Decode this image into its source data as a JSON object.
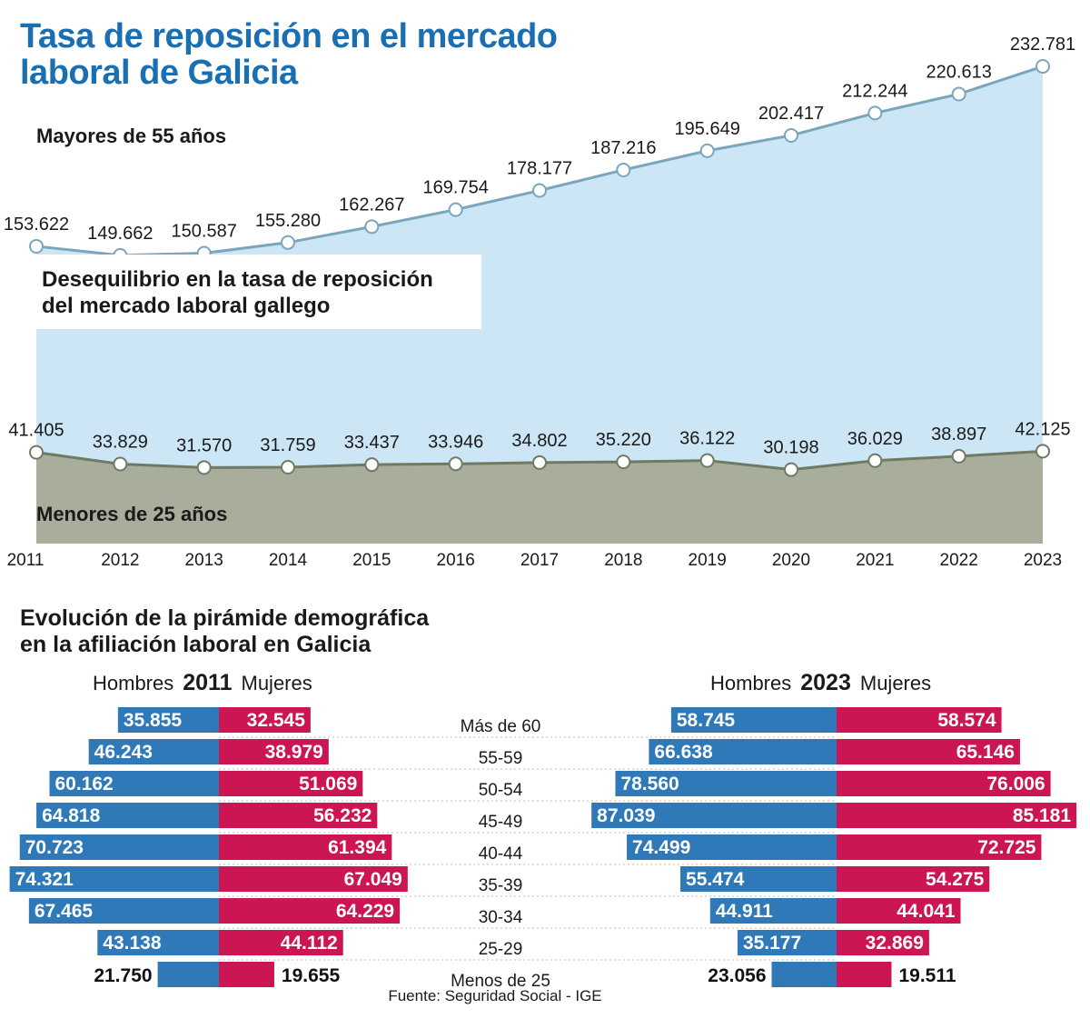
{
  "title_line1": "Tasa de reposición en el mercado",
  "title_line2": "laboral de Galicia",
  "subtitle_line1": "Desequilibrio en la tasa de reposición",
  "subtitle_line2": "del mercado laboral gallego",
  "pyramid_title_line1": "Evolución de la pirámide demográfica",
  "pyramid_title_line2": "en la afiliación laboral en Galicia",
  "pyramid_hombres": "Hombres",
  "pyramid_mujeres": "Mujeres",
  "source": "Fuente: Seguridad Social - IGE",
  "colors": {
    "men": "#2f79b9",
    "women": "#cc1553",
    "top_area": "#cce6f5",
    "top_line": "#7aa6bd",
    "bottom_area": "#a9ad9b",
    "bottom_line": "#6f7a62",
    "title": "#1a6fb3"
  },
  "chart_data": [
    {
      "type": "area",
      "years": [
        "2011",
        "2012",
        "2013",
        "2014",
        "2015",
        "2016",
        "2017",
        "2018",
        "2019",
        "2020",
        "2021",
        "2022",
        "2023"
      ],
      "series": [
        {
          "name": "Mayores de 55 años",
          "values": [
            153622,
            149662,
            150587,
            155280,
            162267,
            169754,
            178177,
            187216,
            195649,
            202417,
            212244,
            220613,
            232781
          ],
          "labels": [
            "153.622",
            "149.662",
            "150.587",
            "155.280",
            "162.267",
            "169.754",
            "178.177",
            "187.216",
            "195.649",
            "202.417",
            "212.244",
            "220.613",
            "232.781"
          ]
        },
        {
          "name": "Menores de 25 años",
          "values": [
            41405,
            33829,
            31570,
            31759,
            33437,
            33946,
            34802,
            35220,
            36122,
            30198,
            36029,
            38897,
            42125
          ],
          "labels": [
            "41.405",
            "33.829",
            "31.570",
            "31.759",
            "33.437",
            "33.946",
            "34.802",
            "35.220",
            "36.122",
            "30.198",
            "36.029",
            "38.897",
            "42.125"
          ]
        }
      ]
    },
    {
      "type": "bar",
      "orientation": "horizontal-pyramid",
      "categories": [
        "Más de 60",
        "55-59",
        "50-54",
        "45-49",
        "40-44",
        "35-39",
        "30-34",
        "25-29",
        "Menos de 25"
      ],
      "pyramids": [
        {
          "year": "2011",
          "hombres": [
            35855,
            46243,
            60162,
            64818,
            70723,
            74321,
            67465,
            43138,
            21750
          ],
          "mujeres": [
            32545,
            38979,
            51069,
            56232,
            61394,
            67049,
            64229,
            44112,
            19655
          ],
          "hombres_labels": [
            "35.855",
            "46.243",
            "60.162",
            "64.818",
            "70.723",
            "74.321",
            "67.465",
            "43.138",
            "21.750"
          ],
          "mujeres_labels": [
            "32.545",
            "38.979",
            "51.069",
            "56.232",
            "61.394",
            "67.049",
            "64.229",
            "44.112",
            "19.655"
          ]
        },
        {
          "year": "2023",
          "hombres": [
            58745,
            66638,
            78560,
            87039,
            74499,
            55474,
            44911,
            35177,
            23056
          ],
          "mujeres": [
            58574,
            65146,
            76006,
            85181,
            72725,
            54275,
            44041,
            32869,
            19511
          ],
          "hombres_labels": [
            "58.745",
            "66.638",
            "78.560",
            "87.039",
            "74.499",
            "55.474",
            "44.911",
            "35.177",
            "23.056"
          ],
          "mujeres_labels": [
            "58.574",
            "65.146",
            "76.006",
            "85.181",
            "72.725",
            "54.275",
            "44.041",
            "32.869",
            "19.511"
          ]
        }
      ]
    }
  ]
}
